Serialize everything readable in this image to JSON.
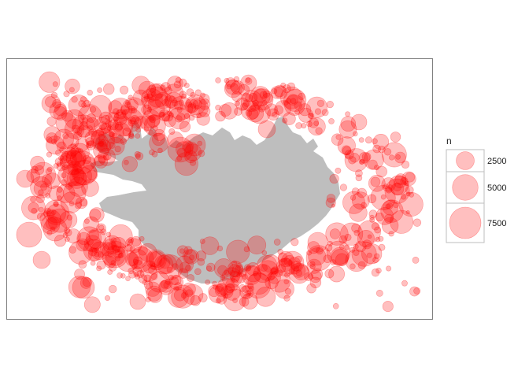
{
  "chart_data": {
    "type": "scatter",
    "subtype": "bubble-map",
    "title": "",
    "xlabel": "",
    "ylabel": "",
    "grid": false,
    "legend_placement": "right",
    "colors": {
      "land": "#bebebe",
      "point_fill": "#ff0000",
      "point_fill_opacity": 0.25,
      "panel_border": "#7f7f7f",
      "legend_key_border": "#bdbdbd"
    },
    "size_legend": {
      "title": "n",
      "breaks": [
        {
          "value": 2500,
          "label": "2500"
        },
        {
          "value": 5000,
          "label": "5000"
        },
        {
          "value": 7500,
          "label": "7500"
        }
      ]
    }
  }
}
